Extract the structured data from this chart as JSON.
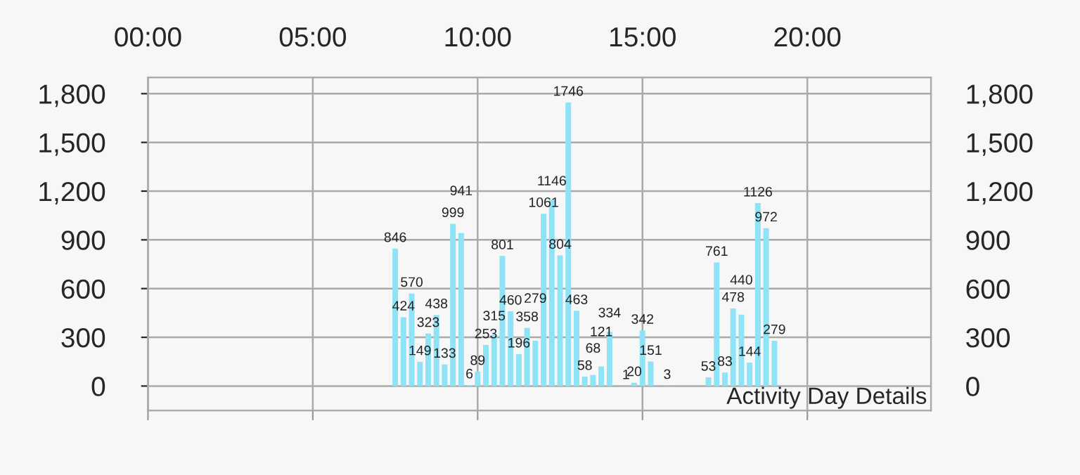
{
  "chart_data": {
    "type": "bar",
    "x": [
      7.5,
      7.75,
      8.0,
      8.25,
      8.5,
      8.75,
      9.0,
      9.25,
      9.5,
      9.75,
      10.0,
      10.25,
      10.5,
      10.75,
      11.0,
      11.25,
      11.5,
      11.75,
      12.0,
      12.25,
      12.5,
      12.75,
      13.0,
      13.25,
      13.5,
      13.75,
      14.0,
      14.5,
      14.75,
      15.0,
      15.25,
      15.75,
      17.0,
      17.25,
      17.5,
      17.75,
      18.0,
      18.25,
      18.5,
      18.75,
      19.0
    ],
    "values": [
      846,
      424,
      570,
      149,
      323,
      438,
      133,
      999,
      941,
      6,
      89,
      253,
      315,
      801,
      460,
      196,
      358,
      279,
      1061,
      1146,
      804,
      1746,
      463,
      58,
      68,
      121,
      334,
      1,
      20,
      342,
      151,
      3,
      53,
      761,
      83,
      478,
      440,
      144,
      1126,
      972,
      279
    ],
    "color": "#8fe3f6",
    "data_labels": true,
    "xlim": [
      0,
      23.75
    ],
    "xticks": [
      {
        "value": 0,
        "label": "00:00"
      },
      {
        "value": 5,
        "label": "05:00"
      },
      {
        "value": 10,
        "label": "10:00"
      },
      {
        "value": 15,
        "label": "15:00"
      },
      {
        "value": 20,
        "label": "20:00"
      }
    ],
    "ylim": [
      -150,
      1900
    ],
    "yticks": [
      {
        "value": 0,
        "label": "0"
      },
      {
        "value": 300,
        "label": "300"
      },
      {
        "value": 600,
        "label": "600"
      },
      {
        "value": 900,
        "label": "900"
      },
      {
        "value": 1200,
        "label": "1,200"
      },
      {
        "value": 1500,
        "label": "1,500"
      },
      {
        "value": 1800,
        "label": "1,800"
      }
    ],
    "y2lim": [
      -150,
      1900
    ],
    "y2ticks": [
      {
        "value": 0,
        "label": "0"
      },
      {
        "value": 300,
        "label": "300"
      },
      {
        "value": 600,
        "label": "600"
      },
      {
        "value": 900,
        "label": "900"
      },
      {
        "value": 1200,
        "label": "1,200"
      },
      {
        "value": 1500,
        "label": "1,500"
      },
      {
        "value": 1800,
        "label": "1,800"
      }
    ],
    "grid": true,
    "annotations": [
      "Activity Day Details"
    ]
  }
}
